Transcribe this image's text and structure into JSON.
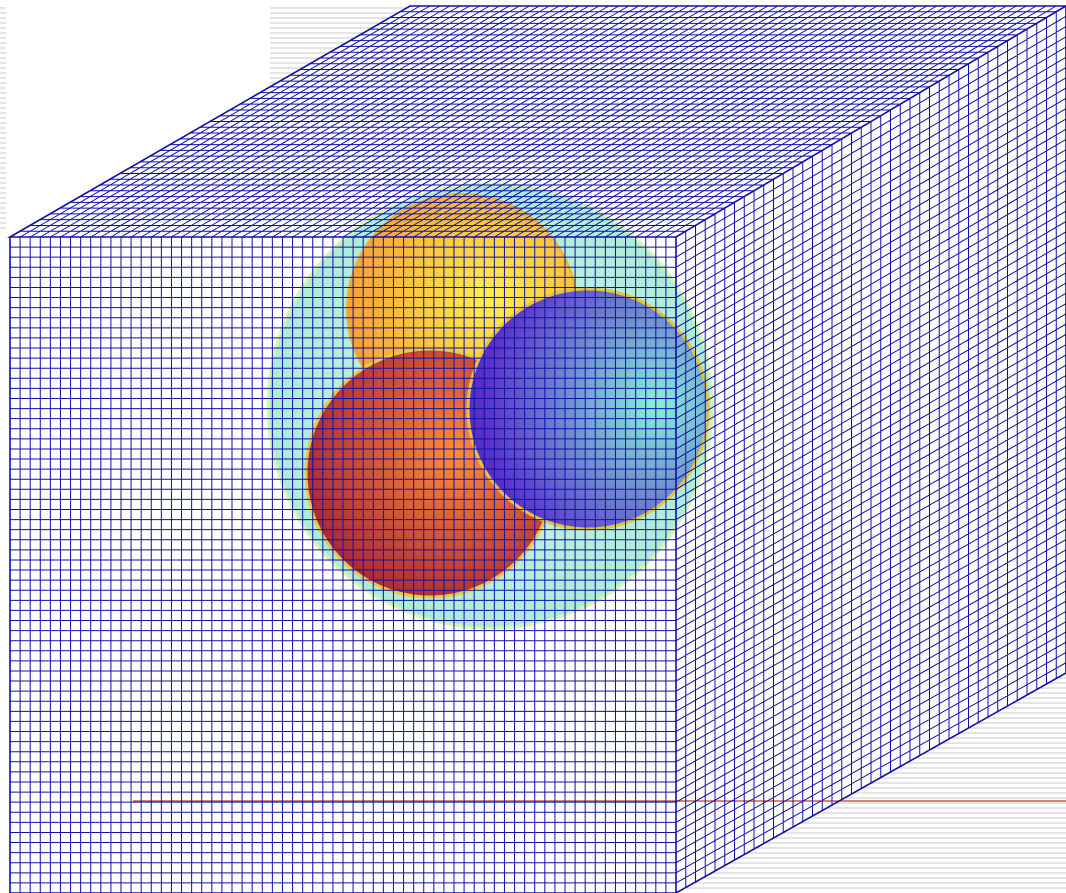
{
  "figure": {
    "kind": "voxel-grid-cube-with-spheres",
    "colors": {
      "background": "#ffffff",
      "backdrop_stripe": "#c8c8c8",
      "grid_line": "#1010a8",
      "reference_line": "#c0392b"
    },
    "grid": {
      "front_columns": 66,
      "front_rows": 65,
      "depth_cells": 40
    },
    "spheres": [
      {
        "name": "halo-sphere",
        "inner": "#c4f5e6",
        "outer": "#9ee8d2",
        "edge": "#d8f5b0",
        "opacity": 0.85
      },
      {
        "name": "yellow-sphere",
        "inner": "#fff04a",
        "outer": "#f4a238",
        "edge": "#e7b43c",
        "opacity": 1
      },
      {
        "name": "red-sphere",
        "inner": "#ff8c3a",
        "outer": "#a82535",
        "edge": "#e7c84a",
        "opacity": 1
      },
      {
        "name": "blue-sphere",
        "inner": "#86f2d8",
        "outer": "#5a2fc8",
        "edge": "#e3c442",
        "opacity": 1
      }
    ]
  }
}
